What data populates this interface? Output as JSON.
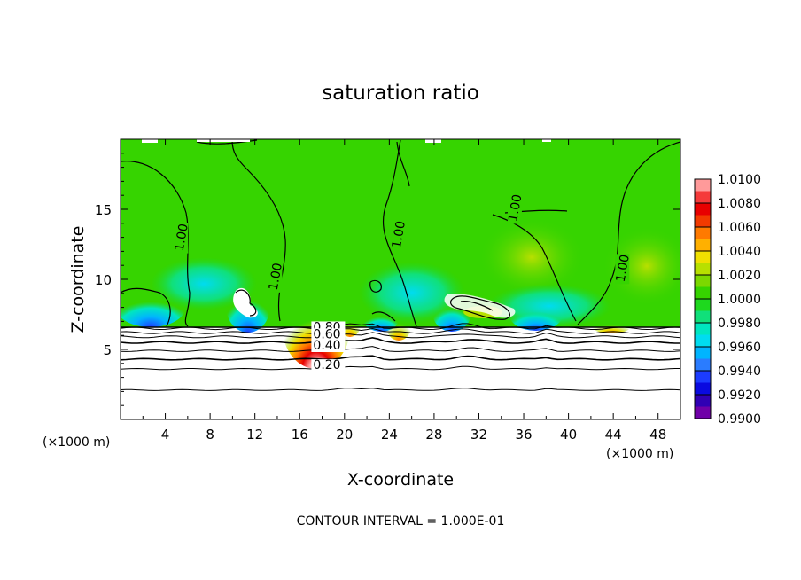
{
  "chart_data": {
    "type": "heatmap",
    "title": "saturation ratio",
    "xlabel": "X-coordinate",
    "ylabel": "Z-coordinate",
    "x_unit": "(×1000 m)",
    "y_unit": "(×1000 m)",
    "footer": "CONTOUR INTERVAL = 1.000E-01",
    "xlim": [
      0,
      50
    ],
    "ylim": [
      0,
      20
    ],
    "x_ticks": [
      4,
      8,
      12,
      16,
      20,
      24,
      28,
      32,
      36,
      40,
      44,
      48
    ],
    "y_ticks": [
      5,
      10,
      15
    ],
    "colorbar": {
      "min": 0.99,
      "max": 1.01,
      "tick_labels": [
        "1.0100",
        "1.0080",
        "1.0060",
        "1.0040",
        "1.0020",
        "1.0000",
        "0.9980",
        "0.9960",
        "0.9940",
        "0.9920",
        "0.9900"
      ],
      "bands": [
        {
          "from": 1.009,
          "to": 1.01,
          "color": "#ff9a9a"
        },
        {
          "from": 1.008,
          "to": 1.009,
          "color": "#f53a3a"
        },
        {
          "from": 1.007,
          "to": 1.008,
          "color": "#e80000"
        },
        {
          "from": 1.006,
          "to": 1.007,
          "color": "#f23a00"
        },
        {
          "from": 1.005,
          "to": 1.006,
          "color": "#ff7a00"
        },
        {
          "from": 1.004,
          "to": 1.005,
          "color": "#ffb000"
        },
        {
          "from": 1.003,
          "to": 1.004,
          "color": "#f0e000"
        },
        {
          "from": 1.002,
          "to": 1.003,
          "color": "#b8e000"
        },
        {
          "from": 1.001,
          "to": 1.002,
          "color": "#7cd800"
        },
        {
          "from": 1.0,
          "to": 1.001,
          "color": "#36d400"
        },
        {
          "from": 0.999,
          "to": 1.0,
          "color": "#1ed81e"
        },
        {
          "from": 0.998,
          "to": 0.999,
          "color": "#10e07a"
        },
        {
          "from": 0.997,
          "to": 0.998,
          "color": "#00e6c0"
        },
        {
          "from": 0.996,
          "to": 0.997,
          "color": "#00dcf0"
        },
        {
          "from": 0.995,
          "to": 0.996,
          "color": "#00b4ff"
        },
        {
          "from": 0.994,
          "to": 0.995,
          "color": "#2a7cff"
        },
        {
          "from": 0.993,
          "to": 0.994,
          "color": "#1c3cff"
        },
        {
          "from": 0.992,
          "to": 0.993,
          "color": "#0a0ae0"
        },
        {
          "from": 0.991,
          "to": 0.992,
          "color": "#3000b4"
        },
        {
          "from": 0.99,
          "to": 0.991,
          "color": "#7000a8"
        }
      ]
    },
    "contour_labels": [
      {
        "text": "1.00",
        "x": 5.4,
        "z": 13.0
      },
      {
        "text": "1.00",
        "x": 13.8,
        "z": 10.2
      },
      {
        "text": "1.00",
        "x": 24.8,
        "z": 13.2
      },
      {
        "text": "1.00",
        "x": 35.2,
        "z": 15.1
      },
      {
        "text": "1.00",
        "x": 44.8,
        "z": 10.8
      },
      {
        "text": "0.80",
        "x": 17.2,
        "z": 6.3
      },
      {
        "text": "0.60",
        "x": 17.2,
        "z": 5.8
      },
      {
        "text": "0.40",
        "x": 17.2,
        "z": 5.0
      },
      {
        "text": "0.20",
        "x": 17.2,
        "z": 3.6
      }
    ],
    "stable_layer_contours": [
      6.5,
      6.2,
      5.9,
      5.5,
      4.9,
      4.3,
      3.6,
      2.1
    ]
  }
}
